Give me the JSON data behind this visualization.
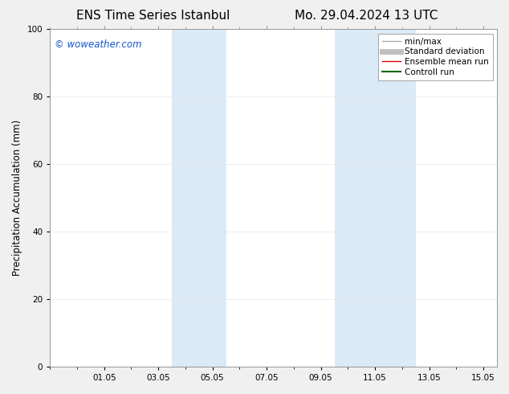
{
  "title_left": "ENS Time Series Istanbul",
  "title_right": "Mo. 29.04.2024 13 UTC",
  "ylabel": "Precipitation Accumulation (mm)",
  "watermark": "© woweather.com",
  "watermark_color": "#1155cc",
  "xlim": [
    0,
    16.5
  ],
  "ylim": [
    0,
    100
  ],
  "yticks": [
    0,
    20,
    40,
    60,
    80,
    100
  ],
  "xtick_labels": [
    "01.05",
    "03.05",
    "05.05",
    "07.05",
    "09.05",
    "11.05",
    "13.05",
    "15.05"
  ],
  "xtick_positions": [
    2,
    4,
    6,
    8,
    10,
    12,
    14,
    16
  ],
  "shaded_bands": [
    {
      "xmin": 4.5,
      "xmax": 6.5
    },
    {
      "xmin": 10.5,
      "xmax": 13.5
    }
  ],
  "shaded_color": "#daeaf7",
  "shaded_alpha": 1.0,
  "background_color": "#f0f0f0",
  "axes_bg_color": "#ffffff",
  "legend_items": [
    {
      "label": "min/max",
      "color": "#aaaaaa",
      "lw": 1.0
    },
    {
      "label": "Standard deviation",
      "color": "#c0c0c0",
      "lw": 5
    },
    {
      "label": "Ensemble mean run",
      "color": "#dd0000",
      "lw": 1.0
    },
    {
      "label": "Controll run",
      "color": "#006600",
      "lw": 1.5
    }
  ],
  "spine_color": "#999999",
  "title_fontsize": 11,
  "tick_fontsize": 7.5,
  "ylabel_fontsize": 8.5,
  "watermark_fontsize": 8.5,
  "legend_fontsize": 7.5
}
